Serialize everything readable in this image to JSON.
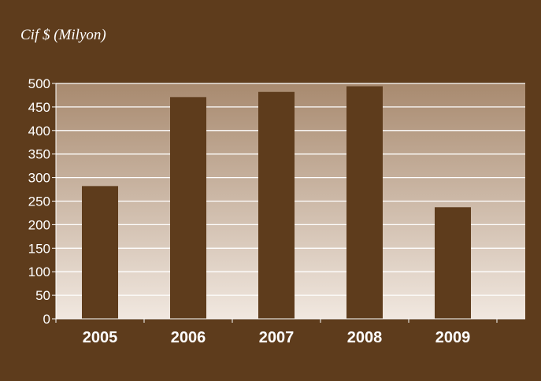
{
  "chart_data": {
    "type": "bar",
    "title": "Cif $ (Milyon)",
    "xlabel": "",
    "ylabel": "",
    "categories": [
      "2005",
      "2006",
      "2007",
      "2008",
      "2009"
    ],
    "values": [
      282,
      471,
      482,
      494,
      237
    ],
    "ylim": [
      0,
      500
    ],
    "yticks": [
      0,
      50,
      100,
      150,
      200,
      250,
      300,
      350,
      400,
      450,
      500
    ],
    "grid": true,
    "legend": "none",
    "colors": {
      "background": "#5e3c1c",
      "bar": "#5e3c1c",
      "plot_gradient_top": "#a88a6f",
      "plot_gradient_bottom": "#f1e8e0",
      "gridline": "#ffffff",
      "text": "#ffffff"
    }
  }
}
